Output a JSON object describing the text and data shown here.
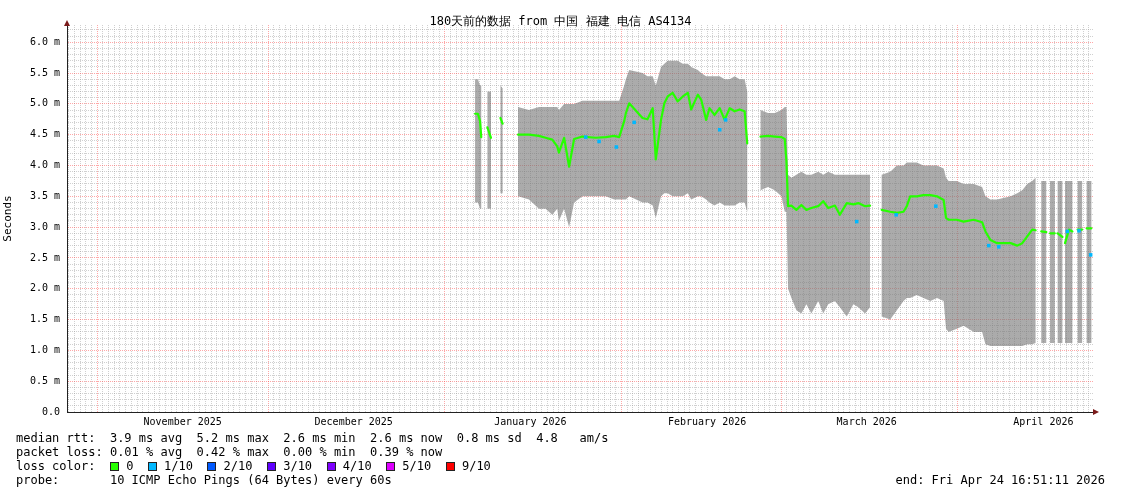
{
  "chart_data": {
    "type": "line",
    "title": "180天前的数据 from 中国 福建 电信 AS4134",
    "ylabel": "Seconds",
    "legend": "bottom",
    "legend_title": "loss color:",
    "grid": true,
    "annotations": [
      "median rtt:  3.9 ms avg  5.2 ms max  2.6 ms min  2.6 ms now  0.8 ms sd  4.8   am/s",
      "packet loss: 0.01 % avg  0.42 % max  0.00 % min  0.39 % now",
      "probe:       10 ICMP Echo Pings (64 Bytes) every 60s",
      "end: Fri Apr 24 16:51:11 2026"
    ],
    "xlim": [
      "2025-10-26T16:51",
      "2026-04-24T16:51"
    ],
    "xticks": [
      {
        "value": "2025-10-27",
        "label": null
      },
      {
        "value": "2025-10-28",
        "label": null
      },
      {
        "value": "2025-10-29",
        "label": null
      },
      {
        "value": "2025-10-30",
        "label": null
      },
      {
        "value": "2025-10-31",
        "label": null
      },
      {
        "value": "2025-11-01",
        "label": null
      },
      {
        "value": "2025-11-02",
        "label": null
      },
      {
        "value": "2025-11-03",
        "label": null
      },
      {
        "value": "2025-11-04",
        "label": null
      },
      {
        "value": "2025-11-05",
        "label": null
      },
      {
        "value": "2025-11-06",
        "label": null
      },
      {
        "value": "2025-11-07",
        "label": null
      },
      {
        "value": "2025-11-08",
        "label": null
      },
      {
        "value": "2025-11-09",
        "label": null
      },
      {
        "value": "2025-11-10",
        "label": null
      },
      {
        "value": "2025-11-11",
        "label": null
      },
      {
        "value": "2025-11-12",
        "label": null
      },
      {
        "value": "2025-11-13",
        "label": null
      },
      {
        "value": "2025-11-14",
        "label": null
      },
      {
        "value": "2025-11-15",
        "label": null
      },
      {
        "value": "2025-11-16",
        "label": "November 2025"
      },
      {
        "value": "2025-11-17",
        "label": null
      },
      {
        "value": "2025-11-18",
        "label": null
      },
      {
        "value": "2025-11-19",
        "label": null
      },
      {
        "value": "2025-11-20",
        "label": null
      },
      {
        "value": "2025-11-21",
        "label": null
      },
      {
        "value": "2025-11-22",
        "label": null
      },
      {
        "value": "2025-11-23",
        "label": null
      },
      {
        "value": "2025-11-24",
        "label": null
      },
      {
        "value": "2025-11-25",
        "label": null
      },
      {
        "value": "2025-11-26",
        "label": null
      },
      {
        "value": "2025-11-27",
        "label": null
      },
      {
        "value": "2025-11-28",
        "label": null
      },
      {
        "value": "2025-11-29",
        "label": null
      },
      {
        "value": "2025-11-30",
        "label": null
      },
      {
        "value": "2025-12-01",
        "label": null
      },
      {
        "value": "2025-12-02",
        "label": null
      },
      {
        "value": "2025-12-03",
        "label": null
      },
      {
        "value": "2025-12-04",
        "label": null
      },
      {
        "value": "2025-12-05",
        "label": null
      },
      {
        "value": "2025-12-06",
        "label": null
      },
      {
        "value": "2025-12-07",
        "label": null
      },
      {
        "value": "2025-12-08",
        "label": null
      },
      {
        "value": "2025-12-09",
        "label": null
      },
      {
        "value": "2025-12-10",
        "label": null
      },
      {
        "value": "2025-12-11",
        "label": null
      },
      {
        "value": "2025-12-12",
        "label": null
      },
      {
        "value": "2025-12-13",
        "label": null
      },
      {
        "value": "2025-12-14",
        "label": null
      },
      {
        "value": "2025-12-15",
        "label": null
      },
      {
        "value": "2025-12-16",
        "label": "December 2025"
      },
      {
        "value": "2025-12-17",
        "label": null
      },
      {
        "value": "2025-12-18",
        "label": null
      },
      {
        "value": "2025-12-19",
        "label": null
      },
      {
        "value": "2025-12-20",
        "label": null
      },
      {
        "value": "2025-12-21",
        "label": null
      },
      {
        "value": "2025-12-22",
        "label": null
      },
      {
        "value": "2025-12-23",
        "label": null
      },
      {
        "value": "2025-12-24",
        "label": null
      },
      {
        "value": "2025-12-25",
        "label": null
      },
      {
        "value": "2025-12-26",
        "label": null
      },
      {
        "value": "2025-12-27",
        "label": null
      },
      {
        "value": "2025-12-28",
        "label": null
      },
      {
        "value": "2025-12-29",
        "label": null
      },
      {
        "value": "2025-12-30",
        "label": null
      },
      {
        "value": "2025-12-31",
        "label": null
      },
      {
        "value": "2026-01-01",
        "label": null
      },
      {
        "value": "2026-01-02",
        "label": null
      },
      {
        "value": "2026-01-03",
        "label": null
      },
      {
        "value": "2026-01-04",
        "label": null
      },
      {
        "value": "2026-01-05",
        "label": null
      },
      {
        "value": "2026-01-06",
        "label": null
      },
      {
        "value": "2026-01-07",
        "label": null
      },
      {
        "value": "2026-01-08",
        "label": null
      },
      {
        "value": "2026-01-09",
        "label": null
      },
      {
        "value": "2026-01-10",
        "label": null
      },
      {
        "value": "2026-01-11",
        "label": null
      },
      {
        "value": "2026-01-12",
        "label": null
      },
      {
        "value": "2026-01-13",
        "label": null
      },
      {
        "value": "2026-01-14",
        "label": null
      },
      {
        "value": "2026-01-15",
        "label": null
      },
      {
        "value": "2026-01-16",
        "label": "January 2026"
      },
      {
        "value": "2026-01-17",
        "label": null
      },
      {
        "value": "2026-01-18",
        "label": null
      },
      {
        "value": "2026-01-19",
        "label": null
      },
      {
        "value": "2026-01-20",
        "label": null
      },
      {
        "value": "2026-01-21",
        "label": null
      },
      {
        "value": "2026-01-22",
        "label": null
      },
      {
        "value": "2026-01-23",
        "label": null
      },
      {
        "value": "2026-01-24",
        "label": null
      },
      {
        "value": "2026-01-25",
        "label": null
      },
      {
        "value": "2026-01-26",
        "label": null
      },
      {
        "value": "2026-01-27",
        "label": null
      },
      {
        "value": "2026-01-28",
        "label": null
      },
      {
        "value": "2026-01-29",
        "label": null
      },
      {
        "value": "2026-01-30",
        "label": null
      },
      {
        "value": "2026-01-31",
        "label": null
      },
      {
        "value": "2026-02-01",
        "label": null
      },
      {
        "value": "2026-02-02",
        "label": null
      },
      {
        "value": "2026-02-03",
        "label": null
      },
      {
        "value": "2026-02-04",
        "label": null
      },
      {
        "value": "2026-02-05",
        "label": null
      },
      {
        "value": "2026-02-06",
        "label": null
      },
      {
        "value": "2026-02-07",
        "label": null
      },
      {
        "value": "2026-02-08",
        "label": null
      },
      {
        "value": "2026-02-09",
        "label": null
      },
      {
        "value": "2026-02-10",
        "label": null
      },
      {
        "value": "2026-02-11",
        "label": null
      },
      {
        "value": "2026-02-12",
        "label": null
      },
      {
        "value": "2026-02-13",
        "label": null
      },
      {
        "value": "2026-02-14",
        "label": null
      },
      {
        "value": "2026-02-15",
        "label": null
      },
      {
        "value": "2026-02-16",
        "label": "February 2026"
      },
      {
        "value": "2026-02-17",
        "label": null
      },
      {
        "value": "2026-02-18",
        "label": null
      },
      {
        "value": "2026-02-19",
        "label": null
      },
      {
        "value": "2026-02-20",
        "label": null
      },
      {
        "value": "2026-02-21",
        "label": null
      },
      {
        "value": "2026-02-22",
        "label": null
      },
      {
        "value": "2026-02-23",
        "label": null
      },
      {
        "value": "2026-02-24",
        "label": null
      },
      {
        "value": "2026-02-25",
        "label": null
      },
      {
        "value": "2026-02-26",
        "label": null
      },
      {
        "value": "2026-02-27",
        "label": null
      },
      {
        "value": "2026-02-28",
        "label": null
      },
      {
        "value": "2026-03-01",
        "label": null
      },
      {
        "value": "2026-03-02",
        "label": null
      },
      {
        "value": "2026-03-03",
        "label": null
      },
      {
        "value": "2026-03-04",
        "label": null
      },
      {
        "value": "2026-03-05",
        "label": null
      },
      {
        "value": "2026-03-06",
        "label": null
      },
      {
        "value": "2026-03-07",
        "label": null
      },
      {
        "value": "2026-03-08",
        "label": null
      },
      {
        "value": "2026-03-09",
        "label": null
      },
      {
        "value": "2026-03-10",
        "label": null
      },
      {
        "value": "2026-03-11",
        "label": null
      },
      {
        "value": "2026-03-12",
        "label": null
      },
      {
        "value": "2026-03-13",
        "label": null
      },
      {
        "value": "2026-03-14",
        "label": null
      },
      {
        "value": "2026-03-15",
        "label": null
      },
      {
        "value": "2026-03-16",
        "label": "March 2026"
      },
      {
        "value": "2026-03-17",
        "label": null
      },
      {
        "value": "2026-03-18",
        "label": null
      },
      {
        "value": "2026-03-19",
        "label": null
      },
      {
        "value": "2026-03-20",
        "label": null
      },
      {
        "value": "2026-03-21",
        "label": null
      },
      {
        "value": "2026-03-22",
        "label": null
      },
      {
        "value": "2026-03-23",
        "label": null
      },
      {
        "value": "2026-03-24",
        "label": null
      },
      {
        "value": "2026-03-25",
        "label": null
      },
      {
        "value": "2026-03-26",
        "label": null
      },
      {
        "value": "2026-03-27",
        "label": null
      },
      {
        "value": "2026-03-28",
        "label": null
      },
      {
        "value": "2026-03-29",
        "label": null
      },
      {
        "value": "2026-03-30",
        "label": null
      },
      {
        "value": "2026-03-31",
        "label": null
      },
      {
        "value": "2026-04-01",
        "label": null
      },
      {
        "value": "2026-04-02",
        "label": null
      },
      {
        "value": "2026-04-03",
        "label": null
      },
      {
        "value": "2026-04-04",
        "label": null
      },
      {
        "value": "2026-04-05",
        "label": null
      },
      {
        "value": "2026-04-06",
        "label": null
      },
      {
        "value": "2026-04-07",
        "label": null
      },
      {
        "value": "2026-04-08",
        "label": null
      },
      {
        "value": "2026-04-09",
        "label": null
      },
      {
        "value": "2026-04-10",
        "label": null
      },
      {
        "value": "2026-04-11",
        "label": null
      },
      {
        "value": "2026-04-12",
        "label": null
      },
      {
        "value": "2026-04-13",
        "label": null
      },
      {
        "value": "2026-04-14",
        "label": null
      },
      {
        "value": "2026-04-15",
        "label": null
      },
      {
        "value": "2026-04-16",
        "label": "April 2026"
      },
      {
        "value": "2026-04-17",
        "label": null
      },
      {
        "value": "2026-04-18",
        "label": null
      },
      {
        "value": "2026-04-19",
        "label": null
      },
      {
        "value": "2026-04-20",
        "label": null
      },
      {
        "value": "2026-04-21",
        "label": null
      },
      {
        "value": "2026-04-22",
        "label": null
      },
      {
        "value": "2026-04-23",
        "label": null
      },
      {
        "value": "2026-04-24",
        "label": null
      }
    ],
    "ylim": [
      0,
      6.28
    ],
    "yticks": [
      {
        "value": 0,
        "label": "0.0"
      },
      {
        "value": 0.1,
        "label": null
      },
      {
        "value": 0.2,
        "label": null
      },
      {
        "value": 0.3,
        "label": null
      },
      {
        "value": 0.4,
        "label": null
      },
      {
        "value": 0.5,
        "label": "0.5 m"
      },
      {
        "value": 0.6,
        "label": null
      },
      {
        "value": 0.7,
        "label": null
      },
      {
        "value": 0.8,
        "label": null
      },
      {
        "value": 0.9,
        "label": null
      },
      {
        "value": 1.0,
        "label": "1.0 m"
      },
      {
        "value": 1.1,
        "label": null
      },
      {
        "value": 1.2,
        "label": null
      },
      {
        "value": 1.3,
        "label": null
      },
      {
        "value": 1.4,
        "label": null
      },
      {
        "value": 1.5,
        "label": "1.5 m"
      },
      {
        "value": 1.6,
        "label": null
      },
      {
        "value": 1.7,
        "label": null
      },
      {
        "value": 1.8,
        "label": null
      },
      {
        "value": 1.9,
        "label": null
      },
      {
        "value": 2.0,
        "label": "2.0 m"
      },
      {
        "value": 2.1,
        "label": null
      },
      {
        "value": 2.2,
        "label": null
      },
      {
        "value": 2.3,
        "label": null
      },
      {
        "value": 2.4,
        "label": null
      },
      {
        "value": 2.5,
        "label": "2.5 m"
      },
      {
        "value": 2.6,
        "label": null
      },
      {
        "value": 2.7,
        "label": null
      },
      {
        "value": 2.8,
        "label": null
      },
      {
        "value": 2.9,
        "label": null
      },
      {
        "value": 3.0,
        "label": "3.0 m"
      },
      {
        "value": 3.1,
        "label": null
      },
      {
        "value": 3.2,
        "label": null
      },
      {
        "value": 3.3,
        "label": null
      },
      {
        "value": 3.4,
        "label": null
      },
      {
        "value": 3.5,
        "label": "3.5 m"
      },
      {
        "value": 3.6,
        "label": null
      },
      {
        "value": 3.7,
        "label": null
      },
      {
        "value": 3.8,
        "label": null
      },
      {
        "value": 3.9,
        "label": null
      },
      {
        "value": 4.0,
        "label": "4.0 m"
      },
      {
        "value": 4.1,
        "label": null
      },
      {
        "value": 4.2,
        "label": null
      },
      {
        "value": 4.3,
        "label": null
      },
      {
        "value": 4.4,
        "label": null
      },
      {
        "value": 4.5,
        "label": "4.5 m"
      },
      {
        "value": 4.6,
        "label": null
      },
      {
        "value": 4.7,
        "label": null
      },
      {
        "value": 4.8,
        "label": null
      },
      {
        "value": 4.9,
        "label": null
      },
      {
        "value": 5.0,
        "label": "5.0 m"
      },
      {
        "value": 5.1,
        "label": null
      },
      {
        "value": 5.2,
        "label": null
      },
      {
        "value": 5.3,
        "label": null
      },
      {
        "value": 5.4,
        "label": null
      },
      {
        "value": 5.5,
        "label": "5.5 m"
      },
      {
        "value": 5.6,
        "label": null
      },
      {
        "value": 5.7,
        "label": null
      },
      {
        "value": 5.8,
        "label": null
      },
      {
        "value": 5.9,
        "label": null
      },
      {
        "value": 6.0,
        "label": "6.0 m"
      },
      {
        "value": 6.1,
        "label": null
      },
      {
        "value": 6.2,
        "label": null
      }
    ],
    "x": [
      "2026-01-06T07:00",
      "2026-01-06T19:00",
      "2026-01-07T04:00",
      "2026-01-07T09:00",
      "2026-01-07T22:00",
      "2026-01-08T11:00",
      "2026-01-09T02:00",
      "2026-01-09T19:00",
      "2026-01-10T18:00",
      "2026-01-11T03:00",
      "2026-01-12T10:00",
      "2026-01-13T20:00",
      "2026-01-15T18:00",
      "2026-01-17T12:00",
      "2026-01-18T16:00",
      "2026-01-19T20:00",
      "2026-01-20T17:00",
      "2026-01-21T00:00",
      "2026-01-21T22:00",
      "2026-01-22T19:00",
      "2026-01-23T16:00",
      "2026-01-25T03:00",
      "2026-01-27T11:00",
      "2026-01-29T05:00",
      "2026-01-30T17:00",
      "2026-01-31T14:00",
      "2026-02-01T11:00",
      "2026-02-01T18:00",
      "2026-02-02T08:00",
      "2026-02-04T16:00",
      "2026-02-05T13:00",
      "2026-02-06T11:00",
      "2026-02-07T00:00",
      "2026-02-07T22:00",
      "2026-02-08T12:00",
      "2026-02-09T02:00",
      "2026-02-09T23:00",
      "2026-02-10T20:00",
      "2026-02-11T18:00",
      "2026-02-12T15:00",
      "2026-02-13T05:00",
      "2026-02-14T09:00",
      "2026-02-14T23:00",
      "2026-02-15T20:00",
      "2026-02-16T10:00",
      "2026-02-17T07:00",
      "2026-02-18T05:00",
      "2026-02-19T02:00",
      "2026-02-19T23:00",
      "2026-02-20T20:00",
      "2026-02-21T17:00",
      "2026-02-22T14:00",
      "2026-02-23T01:00",
      "2026-02-24T01:00",
      "2026-02-25T09:00",
      "2026-02-26T17:00",
      "2026-02-27T21:00",
      "2026-03-01T01:00",
      "2026-03-01T15:00",
      "2026-03-01T22:00",
      "2026-03-02T05:00",
      "2026-03-02T19:00",
      "2026-03-03T16:00",
      "2026-03-04T13:00",
      "2026-03-05T10:00",
      "2026-03-06T07:00",
      "2026-03-07T12:00",
      "2026-03-08T09:00",
      "2026-03-09T06:00",
      "2026-03-10T10:00",
      "2026-03-11T07:00",
      "2026-03-12T12:00",
      "2026-03-13T16:00",
      "2026-03-14T13:00",
      "2026-03-15T17:00",
      "2026-03-16T14:00",
      "2026-03-17T12:00",
      "2026-03-18T15:00",
      "2026-03-20T03:00",
      "2026-03-21T07:00",
      "2026-03-22T11:00",
      "2026-03-23T01:00",
      "2026-03-23T15:00",
      "2026-03-24T19:00",
      "2026-03-25T23:00",
      "2026-03-27T04:00",
      "2026-03-28T08:00",
      "2026-03-29T12:00",
      "2026-03-29T22:00",
      "2026-03-30T09:00",
      "2026-03-31T20:00",
      "2026-04-02T00:00",
      "2026-04-03T19:00",
      "2026-04-05T06:00",
      "2026-04-05T20:00",
      "2026-04-06T17:00",
      "2026-04-07T21:00",
      "2026-04-10T06:00",
      "2026-04-11T10:00",
      "2026-04-12T07:00",
      "2026-04-13T04:00",
      "2026-04-14T01:00",
      "2026-04-14T15:00",
      "2026-04-15T01:00",
      "2026-04-15T15:00",
      "2026-04-16T12:00",
      "2026-04-16T21:00",
      "2026-04-17T04:00",
      "2026-04-18T00:00",
      "2026-04-18T05:00",
      "2026-04-18T12:00",
      "2026-04-19T08:00",
      "2026-04-19T13:00",
      "2026-04-19T19:00",
      "2026-04-20T12:00",
      "2026-04-21T02:00",
      "2026-04-21T12:00",
      "2026-04-22T00:00",
      "2026-04-22T19:00",
      "2026-04-23T06:00",
      "2026-04-23T14:00",
      "2026-04-24T10:00"
    ],
    "series": [
      {
        "name": "0",
        "color": "#26ff00",
        "values": [
          4.84,
          4.84,
          4.72,
          4.46,
          null,
          4.62,
          4.45,
          null,
          4.77,
          4.68,
          null,
          4.5,
          4.5,
          4.48,
          4.45,
          4.42,
          4.31,
          4.21,
          4.45,
          3.98,
          4.43,
          4.47,
          4.45,
          4.46,
          4.48,
          4.46,
          4.72,
          4.85,
          5.01,
          4.77,
          4.75,
          4.93,
          4.1,
          4.74,
          5.01,
          5.12,
          5.18,
          5.04,
          5.12,
          5.18,
          4.91,
          5.15,
          5.07,
          4.74,
          4.93,
          4.82,
          4.93,
          4.74,
          4.93,
          4.88,
          4.91,
          4.88,
          4.36,
          null,
          4.47,
          4.48,
          4.47,
          4.46,
          4.43,
          4.07,
          3.34,
          3.35,
          3.28,
          3.36,
          3.28,
          3.31,
          3.34,
          3.42,
          3.31,
          3.35,
          3.2,
          3.39,
          3.37,
          3.39,
          3.34,
          3.35,
          null,
          3.28,
          3.25,
          3.23,
          3.25,
          3.34,
          3.5,
          3.5,
          3.52,
          3.52,
          3.5,
          3.44,
          3.15,
          3.12,
          3.12,
          3.09,
          3.12,
          3.08,
          2.93,
          2.79,
          2.74,
          2.74,
          2.7,
          2.74,
          2.85,
          2.96,
          2.95,
          null,
          2.93,
          2.92,
          null,
          2.9,
          2.9,
          null,
          2.9,
          2.84,
          null,
          2.74,
          2.96,
          2.93,
          null,
          2.96,
          2.96,
          null,
          2.98,
          2.98
        ],
        "lower": [
          3.4,
          3.4,
          3.3,
          3.3,
          null,
          3.3,
          3.3,
          null,
          3.55,
          3.55,
          null,
          3.5,
          3.45,
          3.3,
          3.3,
          3.2,
          3.3,
          3.1,
          3.3,
          3.0,
          3.4,
          3.5,
          3.5,
          3.5,
          3.45,
          3.45,
          3.45,
          3.45,
          3.5,
          3.4,
          3.4,
          3.35,
          3.15,
          3.5,
          3.55,
          3.55,
          3.5,
          3.5,
          3.5,
          3.55,
          3.45,
          3.5,
          3.5,
          3.45,
          3.4,
          3.35,
          3.4,
          3.35,
          3.35,
          3.35,
          3.4,
          3.4,
          3.25,
          null,
          3.6,
          3.65,
          3.6,
          3.5,
          3.25,
          3.25,
          2.0,
          1.85,
          1.65,
          1.6,
          1.75,
          1.6,
          1.8,
          1.6,
          1.75,
          1.8,
          1.7,
          1.55,
          1.75,
          1.7,
          1.6,
          1.7,
          null,
          1.55,
          1.5,
          1.65,
          1.8,
          1.85,
          1.85,
          1.9,
          1.85,
          1.8,
          1.85,
          1.8,
          1.35,
          1.3,
          1.35,
          1.4,
          1.3,
          1.3,
          1.1,
          1.07,
          1.07,
          1.07,
          1.07,
          1.07,
          1.1,
          1.1,
          1.12,
          null,
          1.12,
          1.12,
          null,
          1.12,
          1.12,
          null,
          1.12,
          1.12,
          null,
          1.12,
          1.12,
          1.12,
          null,
          1.12,
          1.12,
          null,
          1.12,
          1.12
        ],
        "upper": [
          5.4,
          5.4,
          5.3,
          5.3,
          null,
          5.2,
          5.2,
          null,
          5.3,
          5.25,
          null,
          4.95,
          4.9,
          4.95,
          4.95,
          4.95,
          4.95,
          4.9,
          5.0,
          5.0,
          5.0,
          5.05,
          5.05,
          5.05,
          5.05,
          5.05,
          5.3,
          5.4,
          5.55,
          5.5,
          5.45,
          5.45,
          5.3,
          5.6,
          5.65,
          5.7,
          5.7,
          5.7,
          5.65,
          5.65,
          5.6,
          5.55,
          5.5,
          5.45,
          5.45,
          5.45,
          5.45,
          5.4,
          5.4,
          5.45,
          5.4,
          5.4,
          5.2,
          null,
          4.9,
          4.85,
          4.85,
          4.9,
          4.95,
          4.95,
          3.85,
          3.8,
          3.85,
          3.9,
          3.85,
          3.85,
          3.9,
          3.85,
          3.9,
          3.85,
          3.85,
          3.85,
          3.85,
          3.85,
          3.85,
          3.85,
          null,
          3.85,
          3.9,
          4.0,
          4.0,
          4.05,
          4.05,
          4.05,
          4.0,
          4.0,
          4.0,
          3.95,
          3.8,
          3.75,
          3.75,
          3.7,
          3.7,
          3.65,
          3.5,
          3.45,
          3.45,
          3.5,
          3.55,
          3.6,
          3.7,
          3.75,
          3.8,
          null,
          3.75,
          3.75,
          null,
          3.75,
          3.75,
          null,
          3.75,
          3.75,
          null,
          3.75,
          3.75,
          3.75,
          null,
          3.75,
          3.75,
          null,
          3.75,
          3.75
        ]
      },
      {
        "name": "1/10",
        "color": "#00b8ff",
        "type": "scatter",
        "marker": "square",
        "x": [
          "2026-01-25T17:00",
          "2026-01-28T01:00",
          "2026-01-31T02:00",
          "2026-02-03T05:00",
          "2026-02-18T05:00",
          "2026-02-19T06:00",
          "2026-03-14T06:00",
          "2026-03-21T04:00",
          "2026-03-28T03:00",
          "2026-04-06T10:00",
          "2026-04-08T04:00",
          "2026-04-20T05:00",
          "2026-04-22T06:00",
          "2026-04-24T07:00"
        ],
        "values": [
          4.46,
          4.39,
          4.3,
          4.7,
          4.58,
          4.74,
          3.09,
          3.2,
          3.34,
          2.7,
          2.68,
          2.93,
          2.94,
          2.55
        ]
      },
      {
        "name": "2/10",
        "color": "#0059ff",
        "values": [
          null,
          null,
          null,
          null,
          null,
          null,
          null,
          null,
          null,
          null,
          null,
          null,
          null,
          null,
          null,
          null,
          null,
          null,
          null,
          null,
          null,
          null,
          null,
          null,
          null,
          null,
          null,
          null,
          null,
          null,
          null,
          null,
          null,
          null,
          null,
          null,
          null,
          null,
          null,
          null,
          null,
          null,
          null,
          null,
          null,
          null,
          null,
          null,
          null,
          null,
          null,
          null,
          null,
          null,
          null,
          null,
          null,
          null,
          null,
          null,
          null,
          null,
          null,
          null,
          null,
          null,
          null,
          null,
          null,
          null,
          null,
          null,
          null,
          null,
          null,
          null,
          null,
          null,
          null,
          null,
          null,
          null,
          null,
          null,
          null,
          null,
          null,
          null,
          null,
          null,
          null,
          null,
          null,
          null,
          null,
          null,
          null,
          null,
          null,
          null,
          null,
          null,
          null,
          null,
          null,
          null,
          null,
          null,
          null,
          null,
          null,
          null,
          null,
          null,
          null,
          null,
          null,
          null,
          null,
          null,
          null,
          null
        ]
      },
      {
        "name": "3/10",
        "color": "#5e00ff",
        "values": [
          null,
          null,
          null,
          null,
          null,
          null,
          null,
          null,
          null,
          null,
          null,
          null,
          null,
          null,
          null,
          null,
          null,
          null,
          null,
          null,
          null,
          null,
          null,
          null,
          null,
          null,
          null,
          null,
          null,
          null,
          null,
          null,
          null,
          null,
          null,
          null,
          null,
          null,
          null,
          null,
          null,
          null,
          null,
          null,
          null,
          null,
          null,
          null,
          null,
          null,
          null,
          null,
          null,
          null,
          null,
          null,
          null,
          null,
          null,
          null,
          null,
          null,
          null,
          null,
          null,
          null,
          null,
          null,
          null,
          null,
          null,
          null,
          null,
          null,
          null,
          null,
          null,
          null,
          null,
          null,
          null,
          null,
          null,
          null,
          null,
          null,
          null,
          null,
          null,
          null,
          null,
          null,
          null,
          null,
          null,
          null,
          null,
          null,
          null,
          null,
          null,
          null,
          null,
          null,
          null,
          null,
          null,
          null,
          null,
          null,
          null,
          null,
          null,
          null,
          null,
          null,
          null,
          null,
          null,
          null,
          null,
          null
        ]
      },
      {
        "name": "4/10",
        "color": "#7e00ff",
        "values": [
          null,
          null,
          null,
          null,
          null,
          null,
          null,
          null,
          null,
          null,
          null,
          null,
          null,
          null,
          null,
          null,
          null,
          null,
          null,
          null,
          null,
          null,
          null,
          null,
          null,
          null,
          null,
          null,
          null,
          null,
          null,
          null,
          null,
          null,
          null,
          null,
          null,
          null,
          null,
          null,
          null,
          null,
          null,
          null,
          null,
          null,
          null,
          null,
          null,
          null,
          null,
          null,
          null,
          null,
          null,
          null,
          null,
          null,
          null,
          null,
          null,
          null,
          null,
          null,
          null,
          null,
          null,
          null,
          null,
          null,
          null,
          null,
          null,
          null,
          null,
          null,
          null,
          null,
          null,
          null,
          null,
          null,
          null,
          null,
          null,
          null,
          null,
          null,
          null,
          null,
          null,
          null,
          null,
          null,
          null,
          null,
          null,
          null,
          null,
          null,
          null,
          null,
          null,
          null,
          null,
          null,
          null,
          null,
          null,
          null,
          null,
          null,
          null,
          null,
          null,
          null,
          null,
          null,
          null,
          null,
          null,
          null
        ]
      },
      {
        "name": "5/10",
        "color": "#dd00ff",
        "values": [
          null,
          null,
          null,
          null,
          null,
          null,
          null,
          null,
          null,
          null,
          null,
          null,
          null,
          null,
          null,
          null,
          null,
          null,
          null,
          null,
          null,
          null,
          null,
          null,
          null,
          null,
          null,
          null,
          null,
          null,
          null,
          null,
          null,
          null,
          null,
          null,
          null,
          null,
          null,
          null,
          null,
          null,
          null,
          null,
          null,
          null,
          null,
          null,
          null,
          null,
          null,
          null,
          null,
          null,
          null,
          null,
          null,
          null,
          null,
          null,
          null,
          null,
          null,
          null,
          null,
          null,
          null,
          null,
          null,
          null,
          null,
          null,
          null,
          null,
          null,
          null,
          null,
          null,
          null,
          null,
          null,
          null,
          null,
          null,
          null,
          null,
          null,
          null,
          null,
          null,
          null,
          null,
          null,
          null,
          null,
          null,
          null,
          null,
          null,
          null,
          null,
          null,
          null,
          null,
          null,
          null,
          null,
          null,
          null,
          null,
          null,
          null,
          null,
          null,
          null,
          null,
          null,
          null,
          null,
          null,
          null,
          null
        ]
      },
      {
        "name": "9/10",
        "color": "#ff0000",
        "values": [
          null,
          null,
          null,
          null,
          null,
          null,
          null,
          null,
          null,
          null,
          null,
          null,
          null,
          null,
          null,
          null,
          null,
          null,
          null,
          null,
          null,
          null,
          null,
          null,
          null,
          null,
          null,
          null,
          null,
          null,
          null,
          null,
          null,
          null,
          null,
          null,
          null,
          null,
          null,
          null,
          null,
          null,
          null,
          null,
          null,
          null,
          null,
          null,
          null,
          null,
          null,
          null,
          null,
          null,
          null,
          null,
          null,
          null,
          null,
          null,
          null,
          null,
          null,
          null,
          null,
          null,
          null,
          null,
          null,
          null,
          null,
          null,
          null,
          null,
          null,
          null,
          null,
          null,
          null,
          null,
          null,
          null,
          null,
          null,
          null,
          null,
          null,
          null,
          null,
          null,
          null,
          null,
          null,
          null,
          null,
          null,
          null,
          null,
          null,
          null,
          null,
          null,
          null,
          null,
          null,
          null,
          null,
          null,
          null,
          null,
          null,
          null,
          null,
          null,
          null,
          null,
          null,
          null,
          null,
          null,
          null,
          null
        ]
      }
    ]
  }
}
